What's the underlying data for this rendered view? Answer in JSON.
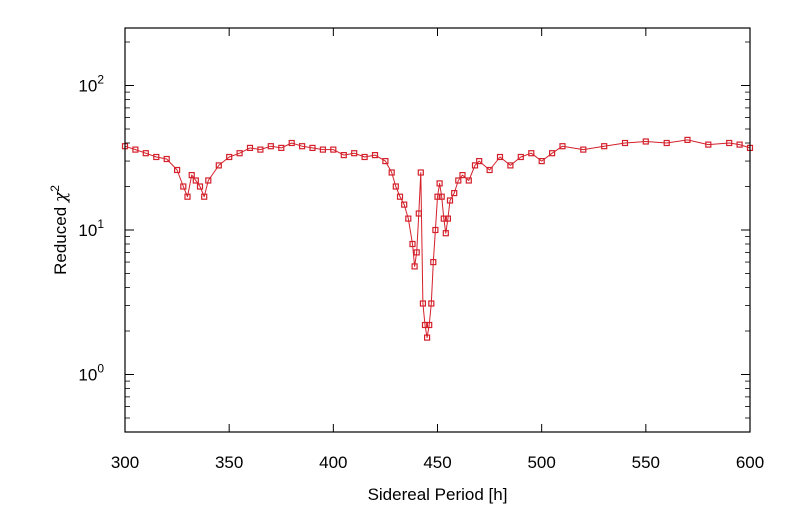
{
  "chart_data": {
    "type": "line",
    "title": "",
    "xlabel": "Sidereal Period [h]",
    "ylabel": {
      "base": "Reduced ",
      "symbol": "χ",
      "sup": "2"
    },
    "xlim": [
      300,
      600
    ],
    "ylim": [
      0.4,
      250
    ],
    "yscale": "log",
    "grid": false,
    "legend": "none",
    "x_ticks": [
      {
        "value": 300,
        "label": "300"
      },
      {
        "value": 350,
        "label": "350"
      },
      {
        "value": 400,
        "label": "400"
      },
      {
        "value": 450,
        "label": "450"
      },
      {
        "value": 500,
        "label": "500"
      },
      {
        "value": 550,
        "label": "550"
      },
      {
        "value": 600,
        "label": "600"
      }
    ],
    "y_ticks": [
      {
        "value": 1,
        "base": "10",
        "exp": "0"
      },
      {
        "value": 10,
        "base": "10",
        "exp": "1"
      },
      {
        "value": 100,
        "base": "10",
        "exp": "2"
      }
    ],
    "series_color": "#d4202a",
    "series": [
      {
        "x": [
          300,
          305,
          310,
          315,
          320,
          325,
          328,
          330,
          332,
          334,
          336,
          338,
          340,
          345,
          350,
          355,
          360,
          365,
          370,
          375,
          380,
          385,
          390,
          395,
          400,
          405,
          410,
          415,
          420,
          425,
          428,
          430,
          432,
          434,
          436,
          438,
          439,
          440,
          441,
          442,
          443,
          444,
          445,
          446,
          447,
          448,
          449,
          450,
          451,
          452,
          453,
          454,
          455,
          456,
          458,
          460,
          462,
          465,
          468,
          470,
          475,
          480,
          485,
          490,
          495,
          500,
          505,
          510,
          520,
          530,
          540,
          550,
          560,
          570,
          580,
          590,
          595,
          600
        ],
        "y": [
          38,
          36,
          34,
          32,
          31,
          26,
          20,
          17,
          24,
          22,
          20,
          17,
          22,
          28,
          32,
          34,
          37,
          36,
          38,
          37,
          40,
          38,
          37,
          36,
          36,
          33,
          34,
          32,
          33,
          30,
          25,
          20,
          17,
          15,
          12,
          8,
          5.6,
          7,
          13,
          25,
          3.1,
          2.2,
          1.8,
          2.2,
          3.1,
          6,
          10,
          17,
          21,
          17,
          12,
          9.5,
          12,
          16,
          18,
          22,
          24,
          22,
          28,
          30,
          26,
          32,
          28,
          32,
          34,
          30,
          34,
          38,
          36,
          38,
          40,
          41,
          40,
          42,
          39,
          40,
          39,
          37
        ]
      }
    ]
  }
}
